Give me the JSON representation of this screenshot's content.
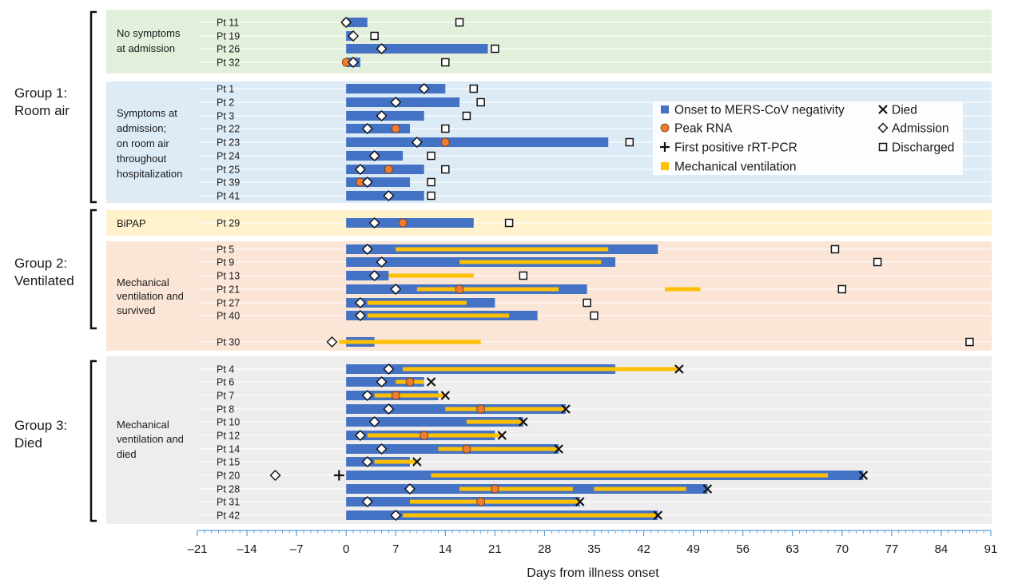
{
  "chart_data": {
    "type": "timeline",
    "title": "",
    "xlabel": "Days from illness onset",
    "xlim": [
      -21,
      91
    ],
    "xticks": [
      -21,
      -14,
      -7,
      0,
      7,
      14,
      21,
      28,
      35,
      42,
      49,
      56,
      63,
      70,
      77,
      84,
      91
    ],
    "xtick_labels": [
      "–21",
      "–14",
      "–7",
      "0",
      "7",
      "14",
      "21",
      "28",
      "35",
      "42",
      "49",
      "56",
      "63",
      "70",
      "77",
      "84",
      "91"
    ],
    "legend": [
      {
        "key": "bar",
        "label": "Onset to MERS-CoV negativity"
      },
      {
        "key": "peak",
        "label": "Peak RNA"
      },
      {
        "key": "firstpos",
        "label": "First positive rRT-PCR"
      },
      {
        "key": "mv",
        "label": "Mechanical ventilation"
      },
      {
        "key": "died",
        "label": "Died"
      },
      {
        "key": "admission",
        "label": "Admission"
      },
      {
        "key": "discharged",
        "label": "Discharged"
      }
    ],
    "groups": [
      {
        "name": "Group 1:",
        "name2": "Room air"
      },
      {
        "name": "Group 2:",
        "name2": "Ventilated"
      },
      {
        "name": "Group 3:",
        "name2": "Died"
      }
    ],
    "subgroups": [
      {
        "lines": [
          "No symptoms",
          "at admission"
        ]
      },
      {
        "lines": [
          "Symptoms at",
          "admission;",
          "on room air",
          "throughout",
          "hospitalization"
        ]
      },
      {
        "lines": [
          "BiPAP"
        ]
      },
      {
        "lines": [
          "Mechanical",
          "ventilation and",
          "survived"
        ]
      },
      {
        "lines": [
          "Mechanical",
          "ventilation and",
          "died"
        ]
      }
    ],
    "patients": [
      {
        "label": "Pt 11",
        "bar": [
          0,
          3
        ],
        "admission": 0,
        "peak": 0,
        "discharged": 16
      },
      {
        "label": "Pt 19",
        "bar": [
          0,
          1
        ],
        "admission": 1,
        "discharged": 4
      },
      {
        "label": "Pt 26",
        "bar": [
          0,
          20
        ],
        "admission": 5,
        "discharged": 21
      },
      {
        "label": "Pt 32",
        "bar": [
          0,
          2
        ],
        "admission": 1,
        "peak": 0,
        "discharged": 14
      },
      {
        "label": "Pt 1",
        "bar": [
          0,
          14
        ],
        "admission": 11,
        "discharged": 18
      },
      {
        "label": "Pt 2",
        "bar": [
          0,
          16
        ],
        "admission": 7,
        "discharged": 19
      },
      {
        "label": "Pt 3",
        "bar": [
          0,
          11
        ],
        "admission": 5,
        "discharged": 17
      },
      {
        "label": "Pt 22",
        "bar": [
          0,
          9
        ],
        "admission": 3,
        "peak": 7,
        "discharged": 14
      },
      {
        "label": "Pt 23",
        "bar": [
          0,
          37
        ],
        "admission": 10,
        "peak": 14,
        "discharged": 40
      },
      {
        "label": "Pt 24",
        "bar": [
          0,
          8
        ],
        "admission": 4,
        "peak": 4,
        "discharged": 12
      },
      {
        "label": "Pt 25",
        "bar": [
          0,
          11
        ],
        "admission": 2,
        "peak": 6,
        "discharged": 14
      },
      {
        "label": "Pt 39",
        "bar": [
          0,
          9
        ],
        "admission": 3,
        "peak": 2,
        "discharged": 12
      },
      {
        "label": "Pt 41",
        "bar": [
          0,
          11
        ],
        "admission": 6,
        "discharged": 12
      },
      {
        "label": "Pt 29",
        "bar": [
          0,
          18
        ],
        "admission": 4,
        "peak": 8,
        "discharged": 23
      },
      {
        "label": "Pt 5",
        "bar": [
          0,
          44
        ],
        "mv": [
          [
            7,
            37
          ]
        ],
        "admission": 3,
        "discharged": 69
      },
      {
        "label": "Pt 9",
        "bar": [
          0,
          38
        ],
        "mv": [
          [
            16,
            36
          ]
        ],
        "admission": 5,
        "discharged": 75
      },
      {
        "label": "Pt 13",
        "bar": [
          0,
          6
        ],
        "mv": [
          [
            6,
            18
          ]
        ],
        "admission": 4,
        "discharged": 25
      },
      {
        "label": "Pt 21",
        "bar": [
          0,
          34
        ],
        "mv": [
          [
            10,
            30
          ],
          [
            45,
            50
          ]
        ],
        "admission": 7,
        "peak": 16,
        "discharged": 70
      },
      {
        "label": "Pt 27",
        "bar": [
          0,
          21
        ],
        "mv": [
          [
            3,
            17
          ]
        ],
        "admission": 2,
        "discharged": 34
      },
      {
        "label": "Pt 40",
        "bar": [
          0,
          27
        ],
        "mv": [
          [
            3,
            23
          ]
        ],
        "admission": 2,
        "discharged": 35
      },
      {
        "label": "Pt 30",
        "bar": [
          0,
          4
        ],
        "mv": [
          [
            -1,
            19
          ]
        ],
        "admission": -2,
        "discharged": 88
      },
      {
        "label": "Pt 4",
        "bar": [
          0,
          38
        ],
        "mv": [
          [
            8,
            47
          ]
        ],
        "admission": 6,
        "died": 47
      },
      {
        "label": "Pt 6",
        "bar": [
          0,
          11
        ],
        "mv": [
          [
            7,
            11
          ]
        ],
        "admission": 5,
        "peak": 9,
        "died": 12
      },
      {
        "label": "Pt 7",
        "bar": [
          0,
          13
        ],
        "mv": [
          [
            4,
            14
          ]
        ],
        "admission": 3,
        "peak": 7,
        "died": 14
      },
      {
        "label": "Pt 8",
        "bar": [
          0,
          31
        ],
        "mv": [
          [
            14,
            31
          ]
        ],
        "admission": 6,
        "peak": 19,
        "died": 31
      },
      {
        "label": "Pt 10",
        "bar": [
          0,
          25
        ],
        "mv": [
          [
            17,
            25
          ]
        ],
        "admission": 4,
        "died": 25
      },
      {
        "label": "Pt 12",
        "bar": [
          0,
          21
        ],
        "mv": [
          [
            3,
            22
          ]
        ],
        "admission": 2,
        "peak": 11,
        "died": 22
      },
      {
        "label": "Pt 14",
        "bar": [
          0,
          30
        ],
        "mv": [
          [
            13,
            30
          ]
        ],
        "admission": 5,
        "peak": 17,
        "died": 30
      },
      {
        "label": "Pt 15",
        "bar": [
          0,
          9
        ],
        "mv": [
          [
            4,
            10
          ]
        ],
        "admission": 3,
        "died": 10
      },
      {
        "label": "Pt 20",
        "bar": [
          0,
          73
        ],
        "mv": [
          [
            12,
            68
          ]
        ],
        "admission": -10,
        "firstpos": -1,
        "died": 73
      },
      {
        "label": "Pt 28",
        "bar": [
          0,
          51
        ],
        "mv": [
          [
            16,
            32
          ],
          [
            35,
            48
          ]
        ],
        "admission": 9,
        "peak": 21,
        "died": 51
      },
      {
        "label": "Pt 31",
        "bar": [
          0,
          33
        ],
        "mv": [
          [
            9,
            33
          ]
        ],
        "admission": 3,
        "peak": 19,
        "died": 33
      },
      {
        "label": "Pt 42",
        "bar": [
          0,
          44
        ],
        "mv": [
          [
            8,
            44
          ]
        ],
        "admission": 7,
        "died": 44
      }
    ]
  },
  "colors": {
    "bar": "#4472c4",
    "mv": "#ffc000",
    "peak": "#ed7d31",
    "group1_nosym_bg": "#e2efda",
    "group1_sym_bg": "#ddebf7",
    "bipap_bg": "#fff2cc",
    "group2_mv_bg": "#fbe5d6",
    "group3_bg": "#ededed",
    "axis": "#5b9bd5"
  }
}
